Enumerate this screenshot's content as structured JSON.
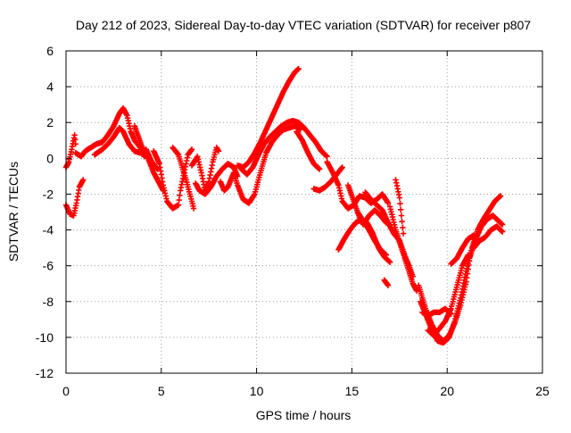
{
  "chart_data": {
    "type": "scatter",
    "title": "Day 212 of 2023, Sidereal Day-to-day VTEC variation (SDTVAR) for receiver p807",
    "xlabel": "GPS time / hours",
    "ylabel": "SDTVAR / TECUs",
    "xlim": [
      0,
      25
    ],
    "ylim": [
      -12,
      6
    ],
    "xticks": [
      0,
      5,
      10,
      15,
      20,
      25
    ],
    "yticks": [
      -12,
      -10,
      -8,
      -6,
      -4,
      -2,
      0,
      2,
      4,
      6
    ],
    "grid": true,
    "marker": "+",
    "series_color": "#ff0000",
    "tracks": [
      [
        [
          0.0,
          -2.6
        ],
        [
          0.2,
          -3.1
        ],
        [
          0.4,
          -3.2
        ],
        [
          0.55,
          -2.5
        ],
        [
          0.7,
          -1.6
        ],
        [
          0.9,
          -1.2
        ]
      ],
      [
        [
          0.0,
          -0.5
        ],
        [
          0.15,
          -0.2
        ],
        [
          0.3,
          0.5
        ],
        [
          0.45,
          1.3
        ],
        [
          0.5,
          0.8
        ]
      ],
      [
        [
          0.5,
          0.3
        ],
        [
          0.8,
          0.1
        ],
        [
          1.0,
          0.4
        ],
        [
          1.3,
          0.6
        ],
        [
          1.6,
          0.8
        ],
        [
          1.9,
          0.9
        ],
        [
          2.2,
          1.3
        ],
        [
          2.5,
          1.8
        ],
        [
          2.8,
          2.5
        ],
        [
          3.0,
          2.8
        ],
        [
          3.2,
          2.4
        ],
        [
          3.4,
          1.5
        ],
        [
          3.6,
          1.0
        ],
        [
          3.9,
          0.6
        ],
        [
          4.1,
          0.1
        ]
      ],
      [
        [
          1.5,
          0.2
        ],
        [
          1.9,
          0.5
        ],
        [
          2.2,
          0.8
        ],
        [
          2.5,
          1.2
        ],
        [
          2.8,
          1.7
        ],
        [
          3.0,
          1.5
        ],
        [
          3.3,
          0.8
        ],
        [
          3.6,
          0.4
        ],
        [
          3.9,
          0.3
        ],
        [
          4.2,
          0.5
        ],
        [
          4.5,
          -0.2
        ],
        [
          4.8,
          -0.6
        ]
      ],
      [
        [
          3.6,
          1.8
        ],
        [
          3.8,
          1.2
        ],
        [
          4.0,
          0.6
        ],
        [
          4.3,
          0.0
        ],
        [
          4.6,
          -0.8
        ],
        [
          4.9,
          -1.4
        ],
        [
          5.1,
          -1.8
        ]
      ],
      [
        [
          4.6,
          0.4
        ],
        [
          4.9,
          -0.3
        ],
        [
          5.1,
          -1.5
        ],
        [
          5.3,
          -2.4
        ],
        [
          5.6,
          -2.8
        ],
        [
          5.9,
          -2.6
        ],
        [
          6.0,
          -1.8
        ],
        [
          6.2,
          -0.8
        ],
        [
          6.4,
          0.2
        ],
        [
          6.6,
          0.5
        ]
      ],
      [
        [
          5.6,
          0.6
        ],
        [
          5.9,
          0.2
        ],
        [
          6.1,
          -0.5
        ],
        [
          6.3,
          -1.2
        ],
        [
          6.5,
          -2.0
        ],
        [
          6.7,
          -2.8
        ]
      ],
      [
        [
          6.6,
          -0.4
        ],
        [
          6.9,
          0.1
        ],
        [
          7.1,
          -0.8
        ],
        [
          7.3,
          -1.8
        ],
        [
          7.5,
          -1.3
        ],
        [
          7.7,
          -0.2
        ],
        [
          7.9,
          0.6
        ],
        [
          8.0,
          0.4
        ]
      ],
      [
        [
          6.8,
          -1.4
        ],
        [
          7.0,
          -1.8
        ],
        [
          7.3,
          -2.0
        ],
        [
          7.6,
          -1.6
        ],
        [
          7.9,
          -1.0
        ],
        [
          8.2,
          -0.6
        ],
        [
          8.5,
          -0.3
        ],
        [
          8.8,
          -0.5
        ],
        [
          9.0,
          -1.0
        ]
      ],
      [
        [
          8.1,
          -1.3
        ],
        [
          8.3,
          -1.8
        ],
        [
          8.5,
          -1.6
        ],
        [
          8.8,
          -0.8
        ],
        [
          9.0,
          -1.5
        ],
        [
          9.3,
          -2.3
        ],
        [
          9.6,
          -2.5
        ],
        [
          9.9,
          -2.0
        ],
        [
          10.2,
          -0.8
        ],
        [
          10.5,
          0.3
        ],
        [
          10.8,
          0.9
        ],
        [
          11.1,
          1.3
        ],
        [
          11.4,
          1.6
        ],
        [
          11.7,
          1.7
        ],
        [
          12.0,
          1.8
        ],
        [
          12.3,
          1.6
        ]
      ],
      [
        [
          9.0,
          -0.4
        ],
        [
          9.3,
          -0.5
        ],
        [
          9.6,
          -0.2
        ],
        [
          9.9,
          0.3
        ],
        [
          10.2,
          0.9
        ],
        [
          10.5,
          1.6
        ],
        [
          10.8,
          2.3
        ],
        [
          11.1,
          3.0
        ],
        [
          11.4,
          3.7
        ],
        [
          11.7,
          4.3
        ],
        [
          12.0,
          4.8
        ],
        [
          12.2,
          5.0
        ]
      ],
      [
        [
          9.2,
          -0.6
        ],
        [
          9.5,
          -0.9
        ],
        [
          9.8,
          -0.5
        ],
        [
          10.1,
          0.2
        ],
        [
          10.4,
          0.8
        ],
        [
          10.7,
          1.2
        ],
        [
          11.0,
          1.5
        ],
        [
          11.3,
          1.8
        ],
        [
          11.6,
          2.0
        ],
        [
          11.9,
          2.1
        ],
        [
          12.2,
          2.0
        ],
        [
          12.5,
          1.7
        ],
        [
          12.8,
          1.3
        ],
        [
          13.1,
          0.9
        ],
        [
          13.4,
          0.4
        ],
        [
          13.7,
          0.1
        ]
      ],
      [
        [
          12.1,
          1.5
        ],
        [
          12.4,
          1.0
        ],
        [
          12.7,
          0.3
        ],
        [
          13.0,
          -0.3
        ],
        [
          13.3,
          -0.6
        ]
      ],
      [
        [
          13.0,
          -1.7
        ],
        [
          13.3,
          -1.8
        ],
        [
          13.6,
          -1.6
        ],
        [
          13.9,
          -1.3
        ],
        [
          14.2,
          -0.9
        ],
        [
          14.5,
          -0.5
        ]
      ],
      [
        [
          13.7,
          -0.2
        ],
        [
          14.0,
          -0.8
        ],
        [
          14.3,
          -1.5
        ],
        [
          14.5,
          -2.4
        ],
        [
          14.8,
          -2.8
        ],
        [
          15.1,
          -2.6
        ],
        [
          15.4,
          -2.1
        ],
        [
          15.7,
          -2.2
        ],
        [
          16.0,
          -2.5
        ],
        [
          16.3,
          -2.3
        ],
        [
          16.6,
          -2.0
        ],
        [
          16.9,
          -2.5
        ]
      ],
      [
        [
          14.8,
          -1.5
        ],
        [
          15.1,
          -2.4
        ],
        [
          15.4,
          -3.3
        ],
        [
          15.6,
          -3.7
        ],
        [
          15.9,
          -3.2
        ],
        [
          16.2,
          -2.9
        ],
        [
          16.5,
          -3.2
        ],
        [
          16.8,
          -3.6
        ]
      ],
      [
        [
          14.3,
          -5.1
        ],
        [
          14.6,
          -4.5
        ],
        [
          14.9,
          -4.0
        ],
        [
          15.2,
          -3.6
        ],
        [
          15.5,
          -3.4
        ],
        [
          15.8,
          -3.6
        ],
        [
          16.1,
          -4.2
        ],
        [
          16.4,
          -5.0
        ],
        [
          16.7,
          -5.5
        ],
        [
          17.0,
          -5.8
        ]
      ],
      [
        [
          15.3,
          -3.0
        ],
        [
          15.6,
          -3.5
        ],
        [
          15.9,
          -4.0
        ],
        [
          16.2,
          -4.6
        ],
        [
          16.5,
          -5.1
        ],
        [
          16.8,
          -5.4
        ]
      ],
      [
        [
          15.7,
          -1.9
        ],
        [
          16.0,
          -2.3
        ],
        [
          16.3,
          -2.6
        ],
        [
          16.6,
          -2.9
        ],
        [
          16.9,
          -3.6
        ],
        [
          17.2,
          -4.2
        ],
        [
          17.5,
          -4.6
        ],
        [
          17.8,
          -5.5
        ],
        [
          18.0,
          -6.0
        ],
        [
          18.2,
          -6.6
        ]
      ],
      [
        [
          17.0,
          -2.7
        ],
        [
          17.3,
          -4.0
        ],
        [
          17.6,
          -5.0
        ],
        [
          17.9,
          -6.0
        ],
        [
          18.2,
          -7.0
        ],
        [
          18.4,
          -7.4
        ]
      ],
      [
        [
          16.7,
          -6.8
        ],
        [
          16.9,
          -7.1
        ]
      ],
      [
        [
          17.3,
          -1.2
        ],
        [
          17.5,
          -2.2
        ],
        [
          17.7,
          -4.2
        ]
      ],
      [
        [
          18.5,
          -7.1
        ],
        [
          18.7,
          -7.8
        ],
        [
          18.9,
          -8.5
        ],
        [
          19.2,
          -9.3
        ],
        [
          19.5,
          -9.9
        ],
        [
          19.8,
          -10.2
        ],
        [
          20.1,
          -9.9
        ],
        [
          20.4,
          -9.2
        ],
        [
          20.7,
          -8.2
        ],
        [
          21.0,
          -6.9
        ],
        [
          21.2,
          -5.5
        ],
        [
          21.5,
          -4.5
        ],
        [
          21.8,
          -3.8
        ],
        [
          22.1,
          -3.4
        ],
        [
          22.4,
          -3.2
        ],
        [
          22.7,
          -3.5
        ],
        [
          22.9,
          -3.7
        ]
      ],
      [
        [
          18.6,
          -8.0
        ],
        [
          18.9,
          -8.8
        ],
        [
          19.2,
          -9.6
        ],
        [
          19.5,
          -10.2
        ],
        [
          19.8,
          -10.3
        ],
        [
          20.1,
          -10.0
        ],
        [
          20.4,
          -9.1
        ],
        [
          20.7,
          -7.8
        ],
        [
          21.0,
          -6.3
        ],
        [
          21.3,
          -5.0
        ],
        [
          21.6,
          -4.0
        ],
        [
          21.9,
          -3.4
        ],
        [
          22.2,
          -2.9
        ],
        [
          22.5,
          -2.4
        ],
        [
          22.8,
          -2.1
        ]
      ],
      [
        [
          18.7,
          -8.6
        ],
        [
          19.0,
          -8.8
        ],
        [
          19.3,
          -8.6
        ],
        [
          19.6,
          -8.6
        ],
        [
          19.9,
          -8.4
        ],
        [
          20.2,
          -8.7
        ]
      ],
      [
        [
          19.0,
          -9.6
        ],
        [
          19.3,
          -9.9
        ],
        [
          19.6,
          -9.5
        ],
        [
          19.9,
          -9.1
        ],
        [
          20.2,
          -8.4
        ],
        [
          20.5,
          -7.2
        ],
        [
          20.8,
          -6.0
        ],
        [
          21.1,
          -5.4
        ]
      ],
      [
        [
          20.2,
          -5.9
        ],
        [
          20.5,
          -5.6
        ],
        [
          20.8,
          -5.0
        ],
        [
          21.1,
          -4.5
        ],
        [
          21.4,
          -4.3
        ]
      ],
      [
        [
          21.4,
          -5.0
        ],
        [
          21.7,
          -4.6
        ],
        [
          22.0,
          -4.4
        ],
        [
          22.3,
          -4.0
        ],
        [
          22.6,
          -3.8
        ],
        [
          22.9,
          -4.1
        ]
      ]
    ]
  }
}
